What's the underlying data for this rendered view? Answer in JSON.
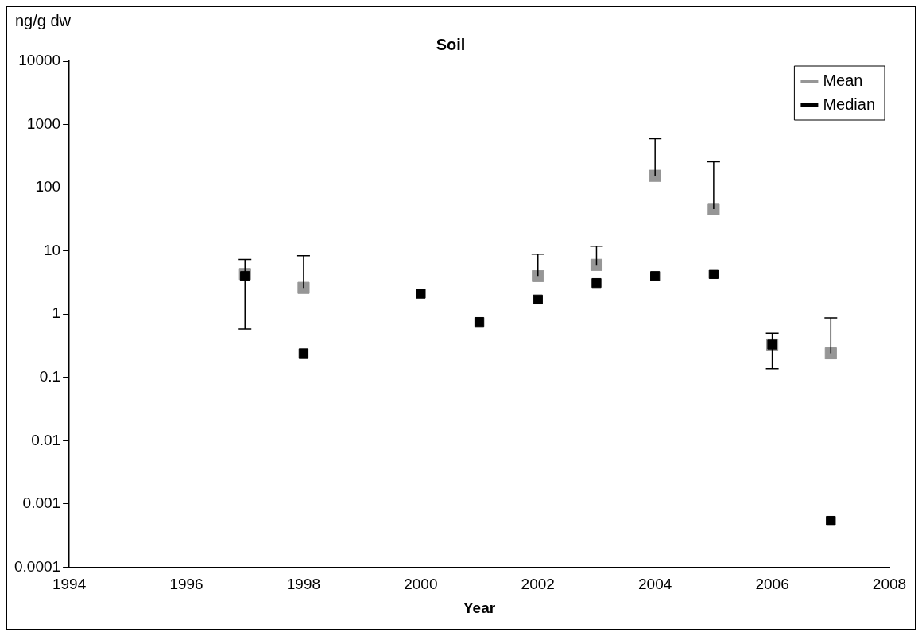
{
  "chart_data": {
    "type": "scatter",
    "title": "Soil",
    "xlabel": "Year",
    "ylabel": "ng/g dw",
    "x": [
      1997,
      1998,
      2000,
      2001,
      2002,
      2003,
      2004,
      2005,
      2006,
      2007
    ],
    "series": [
      {
        "name": "Mean",
        "color": "#969696",
        "values": [
          4.3,
          2.6,
          null,
          null,
          4.0,
          6.0,
          154,
          46,
          0.33,
          0.24
        ],
        "errors": [
          [
            0.58,
            7.3
          ],
          [
            2.6,
            8.4
          ],
          null,
          null,
          [
            4.0,
            8.9
          ],
          [
            6.0,
            11.9
          ],
          [
            154,
            596
          ],
          [
            46,
            257
          ],
          [
            0.137,
            0.5
          ],
          [
            0.24,
            0.87
          ]
        ]
      },
      {
        "name": "Median",
        "color": "#000000",
        "values": [
          4.0,
          0.24,
          2.1,
          0.75,
          1.7,
          3.1,
          4.0,
          4.3,
          0.33,
          0.00054
        ]
      }
    ],
    "xlim": [
      1994,
      2008
    ],
    "xticks": [
      1994,
      1996,
      1998,
      2000,
      2002,
      2004,
      2006,
      2008
    ],
    "ylim": [
      0.0001,
      10000
    ],
    "yticks": [
      0.0001,
      0.001,
      0.01,
      0.1,
      1,
      10,
      100,
      1000,
      10000
    ],
    "log": "y",
    "grid": false,
    "legend": "top right",
    "marker": "square"
  }
}
